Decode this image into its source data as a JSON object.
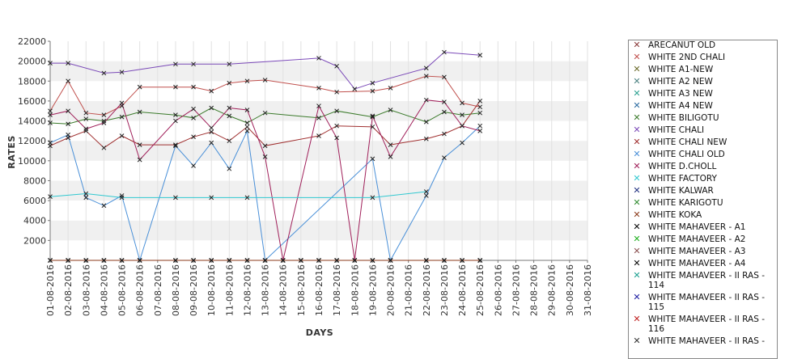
{
  "chart_data": {
    "type": "line",
    "xlabel": "DAYS",
    "ylabel": "RATES",
    "ylim": [
      0,
      22000
    ],
    "yticks": [
      2000,
      4000,
      6000,
      8000,
      10000,
      12000,
      14000,
      16000,
      18000,
      20000,
      22000
    ],
    "grid": "alternating horizontal bands",
    "legend_position": "right",
    "categories": [
      "01-08-2016",
      "02-08-2016",
      "03-08-2016",
      "04-08-2016",
      "05-08-2016",
      "06-08-2016",
      "07-08-2016",
      "08-08-2016",
      "09-08-2016",
      "10-08-2016",
      "11-08-2016",
      "12-08-2016",
      "13-08-2016",
      "14-08-2016",
      "15-08-2016",
      "16-08-2016",
      "17-08-2016",
      "18-08-2016",
      "19-08-2016",
      "20-08-2016",
      "21-08-2016",
      "22-08-2016",
      "23-08-2016",
      "24-08-2016",
      "25-08-2016",
      "26-08-2016",
      "27-08-2016",
      "28-08-2016",
      "29-08-2016",
      "30-08-2016",
      "31-08-2016"
    ],
    "series": [
      {
        "name": "ARECANUT OLD",
        "color": "#8a3a3a",
        "values": [
          0,
          0,
          0,
          0,
          0,
          0,
          null,
          0,
          0,
          0,
          0,
          0,
          0,
          0,
          0,
          0,
          0,
          0,
          0,
          0,
          null,
          0,
          0,
          0,
          0,
          null,
          null,
          null,
          null,
          null,
          null
        ]
      },
      {
        "name": "WHITE 2ND CHALI",
        "color": "#c0504d",
        "values": [
          15000,
          18000,
          14800,
          14600,
          15500,
          17400,
          null,
          17400,
          17400,
          17000,
          17800,
          18000,
          18100,
          null,
          null,
          17300,
          16900,
          null,
          17000,
          17300,
          null,
          18500,
          18400,
          15800,
          15400,
          null,
          null,
          null,
          null,
          null,
          null
        ]
      },
      {
        "name": "WHITE A1-NEW",
        "color": "#6b6b2a",
        "values": [
          0,
          0,
          0,
          0,
          0,
          0,
          null,
          0,
          0,
          0,
          0,
          0,
          0,
          0,
          0,
          0,
          0,
          0,
          0,
          0,
          null,
          0,
          0,
          0,
          0,
          null,
          null,
          null,
          null,
          null,
          null
        ]
      },
      {
        "name": "WHITE A2 NEW",
        "color": "#4a8080",
        "values": [
          null,
          null,
          null,
          null,
          null,
          null,
          null,
          null,
          null,
          null,
          null,
          null,
          null,
          null,
          null,
          null,
          null,
          null,
          null,
          null,
          null,
          null,
          null,
          null,
          null,
          null,
          null,
          null,
          null,
          null,
          null
        ]
      },
      {
        "name": "WHITE A3 NEW",
        "color": "#2aa090",
        "values": [
          null,
          null,
          null,
          null,
          null,
          null,
          null,
          null,
          null,
          null,
          null,
          null,
          null,
          null,
          null,
          null,
          null,
          null,
          null,
          null,
          null,
          null,
          null,
          null,
          null,
          null,
          null,
          null,
          null,
          null,
          null
        ]
      },
      {
        "name": "WHITE A4 NEW",
        "color": "#2a6aa0",
        "values": [
          null,
          null,
          null,
          null,
          null,
          null,
          null,
          null,
          null,
          null,
          null,
          null,
          null,
          null,
          null,
          null,
          null,
          null,
          null,
          null,
          null,
          null,
          null,
          null,
          null,
          null,
          null,
          null,
          null,
          null,
          null
        ]
      },
      {
        "name": "WHITE BILIGOTU",
        "color": "#3a7a2a",
        "values": [
          13800,
          13700,
          14200,
          14000,
          14400,
          14900,
          null,
          14600,
          14300,
          15300,
          14500,
          13800,
          14800,
          null,
          null,
          14300,
          15000,
          null,
          14400,
          15100,
          null,
          13900,
          14900,
          14600,
          14800,
          null,
          null,
          null,
          null,
          null,
          null
        ]
      },
      {
        "name": "WHITE CHALI",
        "color": "#7b4ab8",
        "values": [
          19800,
          19800,
          null,
          18800,
          18900,
          null,
          null,
          19700,
          19700,
          null,
          19700,
          null,
          null,
          null,
          null,
          20300,
          19500,
          17200,
          17800,
          null,
          null,
          19300,
          20900,
          null,
          20600,
          null,
          null,
          null,
          null,
          null,
          null
        ]
      },
      {
        "name": "WHITE CHALI NEW",
        "color": "#a03030",
        "values": [
          11500,
          12300,
          13000,
          11300,
          12500,
          11600,
          null,
          11600,
          12400,
          12900,
          12000,
          13400,
          11500,
          null,
          null,
          12500,
          13500,
          null,
          13400,
          11600,
          null,
          12200,
          12700,
          13500,
          16000,
          null,
          null,
          null,
          null,
          null,
          null
        ]
      },
      {
        "name": "WHITE CHALI OLD",
        "color": "#4a90d8",
        "values": [
          11800,
          12600,
          6300,
          5500,
          6500,
          0,
          null,
          11500,
          9500,
          11800,
          9200,
          13000,
          0,
          null,
          null,
          null,
          null,
          null,
          10200,
          0,
          null,
          6500,
          10300,
          11800,
          13500,
          null,
          null,
          null,
          null,
          null,
          null
        ]
      },
      {
        "name": "WHITE D.CHOLL",
        "color": "#a0205a",
        "values": [
          14600,
          15000,
          13200,
          13800,
          15800,
          10100,
          null,
          14000,
          15200,
          13300,
          15300,
          15100,
          10400,
          0,
          null,
          15500,
          12300,
          0,
          14500,
          10400,
          null,
          16100,
          15900,
          13500,
          13000,
          null,
          null,
          null,
          null,
          null,
          null
        ]
      },
      {
        "name": "WHITE FACTORY",
        "color": "#30c8d0",
        "values": [
          6400,
          null,
          6700,
          null,
          6300,
          null,
          null,
          6300,
          null,
          6300,
          null,
          6300,
          null,
          null,
          null,
          null,
          null,
          null,
          6300,
          null,
          null,
          6900,
          null,
          null,
          null,
          null,
          null,
          null,
          null,
          null,
          null
        ]
      },
      {
        "name": "WHITE KALWAR",
        "color": "#203080",
        "values": [
          0,
          0,
          0,
          0,
          0,
          0,
          null,
          0,
          0,
          0,
          0,
          0,
          0,
          0,
          0,
          0,
          0,
          0,
          0,
          0,
          null,
          0,
          0,
          0,
          0,
          null,
          null,
          null,
          null,
          null,
          null
        ]
      },
      {
        "name": "WHITE KARIGOTU",
        "color": "#2e8b2e",
        "values": [
          0,
          0,
          0,
          0,
          0,
          0,
          null,
          0,
          0,
          0,
          0,
          0,
          0,
          0,
          0,
          0,
          0,
          0,
          0,
          0,
          null,
          0,
          0,
          0,
          0,
          null,
          null,
          null,
          null,
          null,
          null
        ]
      },
      {
        "name": "WHITE KOKA",
        "color": "#8b3a1a",
        "values": [
          0,
          0,
          0,
          0,
          0,
          0,
          null,
          0,
          0,
          0,
          0,
          0,
          0,
          0,
          0,
          0,
          0,
          0,
          0,
          0,
          null,
          0,
          0,
          0,
          0,
          null,
          null,
          null,
          null,
          null,
          null
        ]
      },
      {
        "name": "WHITE MAHAVEER - A1",
        "color": "#000000",
        "values": [
          null,
          null,
          null,
          null,
          null,
          null,
          null,
          null,
          null,
          null,
          null,
          null,
          null,
          null,
          null,
          null,
          null,
          null,
          null,
          null,
          null,
          null,
          null,
          null,
          null,
          null,
          null,
          null,
          null,
          null,
          null
        ]
      },
      {
        "name": "WHITE MAHAVEER - A2",
        "color": "#20b020",
        "values": [
          null,
          null,
          null,
          null,
          null,
          null,
          null,
          null,
          null,
          null,
          null,
          null,
          null,
          null,
          null,
          null,
          null,
          null,
          null,
          null,
          null,
          null,
          null,
          null,
          null,
          null,
          null,
          null,
          null,
          null,
          null
        ]
      },
      {
        "name": "WHITE MAHAVEER - A3",
        "color": "#8a5050",
        "values": [
          null,
          null,
          null,
          null,
          null,
          null,
          null,
          null,
          null,
          null,
          null,
          null,
          null,
          null,
          null,
          null,
          null,
          null,
          null,
          null,
          null,
          null,
          null,
          null,
          null,
          null,
          null,
          null,
          null,
          null,
          null
        ]
      },
      {
        "name": "WHITE MAHAVEER - A4",
        "color": "#000000",
        "values": [
          null,
          null,
          null,
          null,
          null,
          null,
          null,
          null,
          null,
          null,
          null,
          null,
          null,
          null,
          null,
          null,
          null,
          null,
          null,
          null,
          null,
          null,
          null,
          null,
          null,
          null,
          null,
          null,
          null,
          null,
          null
        ]
      },
      {
        "name": "WHITE MAHAVEER - II RAS -\n 114",
        "color": "#1aa090",
        "values": [
          null,
          null,
          null,
          null,
          null,
          null,
          null,
          null,
          null,
          null,
          null,
          null,
          null,
          null,
          null,
          null,
          null,
          null,
          null,
          null,
          null,
          null,
          null,
          null,
          null,
          null,
          null,
          null,
          null,
          null,
          null
        ]
      },
      {
        "name": "WHITE MAHAVEER - II RAS -\n 115",
        "color": "#1a1aa0",
        "values": [
          null,
          null,
          null,
          null,
          null,
          null,
          null,
          null,
          null,
          null,
          null,
          null,
          null,
          null,
          null,
          null,
          null,
          null,
          null,
          null,
          null,
          null,
          null,
          null,
          null,
          null,
          null,
          null,
          null,
          null,
          null
        ]
      },
      {
        "name": "WHITE MAHAVEER - II RAS -\n 116",
        "color": "#c02020",
        "values": [
          null,
          null,
          null,
          null,
          null,
          null,
          null,
          null,
          null,
          null,
          null,
          null,
          null,
          null,
          null,
          null,
          null,
          null,
          null,
          null,
          null,
          null,
          null,
          null,
          null,
          null,
          null,
          null,
          null,
          null,
          null
        ]
      },
      {
        "name": "WHITE MAHAVEER - II RAS -",
        "color": "#333333",
        "values": [
          null,
          null,
          null,
          null,
          null,
          null,
          null,
          null,
          null,
          null,
          null,
          null,
          null,
          null,
          null,
          null,
          null,
          null,
          null,
          null,
          null,
          null,
          null,
          null,
          null,
          null,
          null,
          null,
          null,
          null,
          null
        ]
      }
    ]
  }
}
